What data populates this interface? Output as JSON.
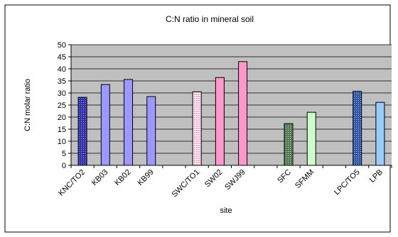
{
  "chart_data": {
    "type": "bar",
    "title": "C:N ratio in mineral soil",
    "xlabel": "site",
    "ylabel": "C:N molar ratio",
    "ylim": [
      0,
      50
    ],
    "yticks": [
      0,
      5,
      10,
      15,
      20,
      25,
      30,
      35,
      40,
      45,
      50
    ],
    "grid": true,
    "legend": "none",
    "plot_background": "#c0c0c0",
    "categories": [
      "KNC/TO2",
      "KB03",
      "KB02",
      "KB99",
      "",
      "SWC/TO1",
      "SW02",
      "SWJ99",
      "",
      "SFC",
      "SFMM",
      "",
      "LPC/TO5",
      "LPB"
    ],
    "bars": [
      {
        "category": "KNC/TO2",
        "value": 28.2,
        "color": "#3333aa",
        "pattern": "grid"
      },
      {
        "category": "KB03",
        "value": 33.5,
        "color": "#9999ff",
        "pattern": "solid"
      },
      {
        "category": "KB02",
        "value": 35.6,
        "color": "#9999ff",
        "pattern": "solid"
      },
      {
        "category": "KB99",
        "value": 28.5,
        "color": "#9999ff",
        "pattern": "solid"
      },
      {
        "category": "",
        "value": null
      },
      {
        "category": "SWC/TO1",
        "value": 30.5,
        "color": "#ff99cc",
        "pattern": "dots"
      },
      {
        "category": "SW02",
        "value": 36.4,
        "color": "#ff99cc",
        "pattern": "solid"
      },
      {
        "category": "SWJ99",
        "value": 43.0,
        "color": "#ff99cc",
        "pattern": "solid"
      },
      {
        "category": "",
        "value": null
      },
      {
        "category": "SFC",
        "value": 17.3,
        "color": "#88bb88",
        "pattern": "grid"
      },
      {
        "category": "SFMM",
        "value": 22.0,
        "color": "#ccffcc",
        "pattern": "solid"
      },
      {
        "category": "",
        "value": null
      },
      {
        "category": "LPC/TO5",
        "value": 30.7,
        "color": "#6699ff",
        "pattern": "grid"
      },
      {
        "category": "LPB",
        "value": 26.1,
        "color": "#99ccff",
        "pattern": "solid"
      }
    ]
  }
}
